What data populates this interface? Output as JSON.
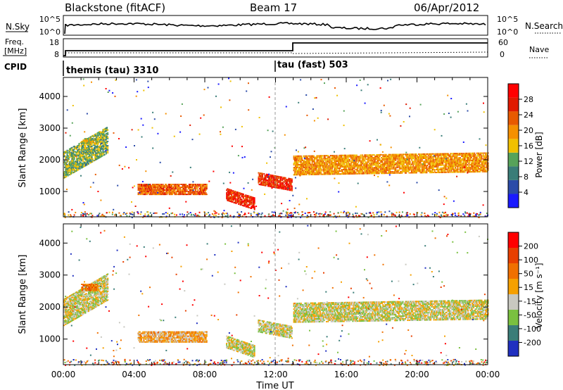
{
  "header": {
    "site": "Blackstone (fitACF)",
    "beam": "Beam 17",
    "date": "06/Apr/2012"
  },
  "noise_panel": {
    "left_label": "N.Sky",
    "left_ticks": [
      "10^5",
      "10^0"
    ],
    "right_label": "N.Search",
    "right_ticks": [
      "10^5",
      "10^0"
    ]
  },
  "freq_panel": {
    "left_label_line1": "Freq.",
    "left_label_line2": "[MHz]",
    "left_ticks": [
      "18",
      "8"
    ],
    "right_label": "Nave",
    "right_ticks": [
      "60",
      "0"
    ]
  },
  "cpid_panel": {
    "label": "CPID",
    "programs": [
      "themis (tau) 3310",
      "tau (fast) 503"
    ]
  },
  "chart_data": [
    {
      "type": "heatmap",
      "name": "power-panel",
      "ylabel": "Slant Range [km]",
      "xlabel": "",
      "yticks": [
        "1000",
        "2000",
        "3000",
        "4000"
      ],
      "ylim": [
        200,
        4600
      ],
      "xlim": [
        0,
        24
      ],
      "colorbar_label": "Power [dB]",
      "colorbar_ticks": [
        "4",
        "8",
        "12",
        "16",
        "20",
        "24",
        "28"
      ],
      "colorbar_colors": [
        "#1a1aff",
        "#2b4ba8",
        "#3a7d78",
        "#57a35a",
        "#f0c000",
        "#f59000",
        "#e85a00",
        "#e01a00",
        "#ff0000"
      ],
      "blobs": [
        {
          "t0": 0.0,
          "t1": 2.5,
          "r0": 1450,
          "r1": 2300,
          "tilt": 800,
          "level": 3
        },
        {
          "t0": 1.0,
          "t1": 1.9,
          "r0": 2550,
          "r1": 2700,
          "tilt": 0,
          "level": 4
        },
        {
          "t0": 4.2,
          "t1": 8.1,
          "r0": 930,
          "r1": 1250,
          "tilt": 0,
          "level": 6
        },
        {
          "t0": 9.2,
          "t1": 10.8,
          "r0": 750,
          "r1": 1150,
          "tilt": -300,
          "level": 7
        },
        {
          "t0": 11.0,
          "t1": 12.9,
          "r0": 1250,
          "r1": 1650,
          "tilt": -200,
          "level": 7
        },
        {
          "t0": 13.0,
          "t1": 24.0,
          "r0": 1550,
          "r1": 2150,
          "tilt": 100,
          "level": 5
        }
      ]
    },
    {
      "type": "heatmap",
      "name": "velocity-panel",
      "ylabel": "Slant Range [km]",
      "xlabel": "Time UT",
      "yticks": [
        "1000",
        "2000",
        "3000",
        "4000"
      ],
      "ylim": [
        200,
        4600
      ],
      "xticks": [
        "00:00",
        "04:00",
        "08:00",
        "12:00",
        "16:00",
        "20:00",
        "00:00"
      ],
      "xlim": [
        0,
        24
      ],
      "colorbar_label": "Velocity [m s⁻¹]",
      "colorbar_ticks": [
        "200",
        "100",
        "50",
        "15",
        "-15",
        "-50",
        "-100",
        "-200"
      ],
      "colorbar_colors": [
        "#2030c0",
        "#3a7d78",
        "#7ac040",
        "#c8c8c0",
        "#f5a000",
        "#f07000",
        "#e84000",
        "#ff0000"
      ],
      "blobs": [
        {
          "t0": 0.0,
          "t1": 2.5,
          "r0": 1450,
          "r1": 2300,
          "tilt": 800,
          "level": 3
        },
        {
          "t0": 1.0,
          "t1": 1.9,
          "r0": 2550,
          "r1": 2750,
          "tilt": 0,
          "level": 5
        },
        {
          "t0": 4.2,
          "t1": 8.1,
          "r0": 930,
          "r1": 1250,
          "tilt": 0,
          "level": 4
        },
        {
          "t0": 9.2,
          "t1": 10.8,
          "r0": 750,
          "r1": 1150,
          "tilt": -300,
          "level": 3
        },
        {
          "t0": 11.0,
          "t1": 12.9,
          "r0": 1250,
          "r1": 1650,
          "tilt": -200,
          "level": 3
        },
        {
          "t0": 13.0,
          "t1": 24.0,
          "r0": 1550,
          "r1": 2150,
          "tilt": 100,
          "level": 3
        }
      ]
    }
  ]
}
